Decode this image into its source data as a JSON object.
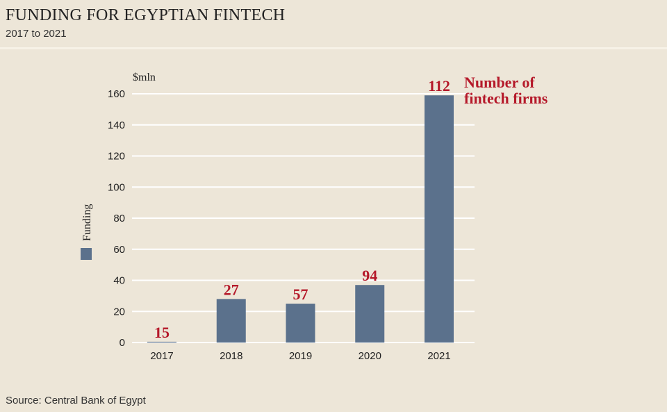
{
  "title": "FUNDING FOR EGYPTIAN FINTECH",
  "subtitle": "2017 to 2021",
  "source": "Source: Central Bank of Egypt",
  "colors": {
    "bar": "#5b718c",
    "label": "#b5192a",
    "grid": "#ffffff"
  },
  "chart_data": {
    "type": "bar",
    "title": "FUNDING FOR EGYPTIAN FINTECH",
    "subtitle": "2017 to 2021",
    "unit_label": "$mln",
    "categories": [
      "2017",
      "2018",
      "2019",
      "2020",
      "2021"
    ],
    "series": [
      {
        "name": "Funding",
        "values": [
          0.5,
          28,
          25,
          37,
          159
        ]
      }
    ],
    "data_labels": [
      "15",
      "27",
      "57",
      "94",
      "112"
    ],
    "annotation": [
      "Number of",
      "fintech firms"
    ],
    "ylim": [
      0,
      160
    ],
    "yticks": [
      0,
      20,
      40,
      60,
      80,
      100,
      120,
      140,
      160
    ],
    "grid": true,
    "legend_position": "left"
  }
}
